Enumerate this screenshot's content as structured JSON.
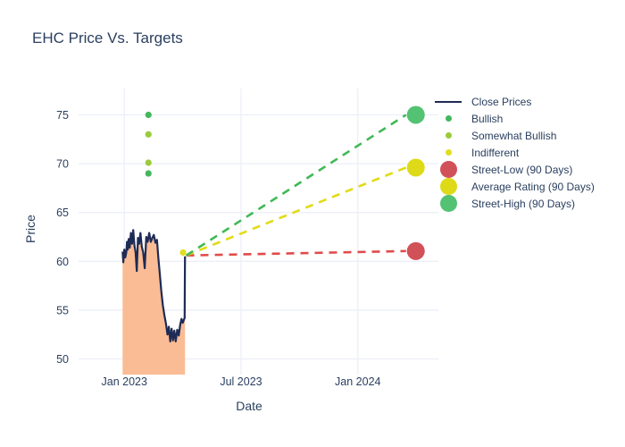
{
  "page_title": "EHC Price Vs. Targets",
  "chart_data": {
    "type": "line+scatter",
    "title": "EHC Price Vs. Targets",
    "xlabel": "Date",
    "ylabel": "Price",
    "x_unit": "months_since_jan_2023",
    "xlim": [
      -2.35,
      16.14
    ],
    "ylim": [
      48.4,
      77.7
    ],
    "grid": true,
    "background": "#ffffff",
    "grid_color": "#eceff9",
    "text_color": "#2a3f5f",
    "x_ticks": [
      {
        "m": 0,
        "label": "Jan 2023"
      },
      {
        "m": 6,
        "label": "Jul 2023"
      },
      {
        "m": 12,
        "label": "Jan 2024"
      }
    ],
    "y_ticks": [
      50,
      55,
      60,
      65,
      70,
      75
    ],
    "close_prices": {
      "name": "Close Prices",
      "line_color": "#1e2b55",
      "fill_color": "#fabc94",
      "points": [
        [
          -0.09,
          61.0
        ],
        [
          -0.05,
          59.9
        ],
        [
          0.0,
          61.2
        ],
        [
          0.05,
          60.4
        ],
        [
          0.1,
          60.9
        ],
        [
          0.14,
          62.0
        ],
        [
          0.18,
          61.2
        ],
        [
          0.23,
          62.3
        ],
        [
          0.28,
          61.4
        ],
        [
          0.34,
          62.9
        ],
        [
          0.4,
          61.8
        ],
        [
          0.46,
          63.2
        ],
        [
          0.52,
          61.6
        ],
        [
          0.58,
          60.9
        ],
        [
          0.64,
          59.0
        ],
        [
          0.7,
          62.4
        ],
        [
          0.76,
          61.8
        ],
        [
          0.83,
          62.9
        ],
        [
          0.9,
          61.5
        ],
        [
          0.97,
          60.9
        ],
        [
          1.05,
          59.3
        ],
        [
          1.13,
          62.5
        ],
        [
          1.2,
          62.0
        ],
        [
          1.28,
          62.9
        ],
        [
          1.36,
          62.0
        ],
        [
          1.44,
          62.4
        ],
        [
          1.52,
          62.7
        ],
        [
          1.6,
          61.9
        ],
        [
          1.68,
          62.2
        ],
        [
          1.75,
          60.3
        ],
        [
          1.83,
          58.6
        ],
        [
          1.9,
          57.0
        ],
        [
          1.98,
          55.5
        ],
        [
          2.06,
          54.5
        ],
        [
          2.14,
          53.6
        ],
        [
          2.22,
          52.5
        ],
        [
          2.29,
          53.3
        ],
        [
          2.36,
          51.8
        ],
        [
          2.43,
          53.1
        ],
        [
          2.5,
          51.9
        ],
        [
          2.57,
          52.9
        ],
        [
          2.64,
          51.8
        ],
        [
          2.72,
          53.0
        ],
        [
          2.8,
          52.4
        ],
        [
          2.87,
          53.5
        ],
        [
          2.94,
          54.1
        ],
        [
          3.0,
          53.7
        ],
        [
          3.06,
          54.0
        ],
        [
          3.1,
          54.2
        ],
        [
          3.12,
          60.5
        ]
      ]
    },
    "ratings": [
      {
        "name": "Bullish",
        "color": "#43b75c",
        "points": [
          [
            1.24,
            75.0
          ],
          [
            1.24,
            69.0
          ]
        ]
      },
      {
        "name": "Somewhat Bullish",
        "color": "#9acb3a",
        "points": [
          [
            1.24,
            73.0
          ],
          [
            1.24,
            70.1
          ]
        ]
      },
      {
        "name": "Indifferent",
        "color": "#e2dd1f",
        "points": [
          [
            3.02,
            60.9
          ]
        ]
      }
    ],
    "targets": [
      {
        "name": "Street-Low (90 Days)",
        "dash_color": "#e04b4b",
        "marker_color": "#d15158",
        "start": [
          3.18,
          60.6
        ],
        "end": [
          14.98,
          61.05
        ]
      },
      {
        "name": "Average Rating (90 Days)",
        "dash_color": "#e2db15",
        "marker_color": "#deda17",
        "start": [
          3.18,
          60.6
        ],
        "end": [
          14.98,
          69.6
        ]
      },
      {
        "name": "Street-High (90 Days)",
        "dash_color": "#3fb956",
        "marker_color": "#53c273",
        "start": [
          14.98,
          75.0
        ],
        "end": [
          14.98,
          75.0
        ],
        "start_override": [
          3.18,
          60.6
        ]
      }
    ],
    "legend": [
      {
        "label": "Close Prices",
        "marker": "line",
        "color": "#1e2b55",
        "size": 0
      },
      {
        "label": "Bullish",
        "marker": "dot",
        "color": "#43b75c",
        "size": 7
      },
      {
        "label": "Somewhat Bullish",
        "marker": "dot",
        "color": "#9acb3a",
        "size": 7
      },
      {
        "label": "Indifferent",
        "marker": "dot",
        "color": "#e2dd1f",
        "size": 7
      },
      {
        "label": "Street-Low (90 Days)",
        "marker": "dot",
        "color": "#d15158",
        "size": 19
      },
      {
        "label": "Average Rating (90 Days)",
        "marker": "dot",
        "color": "#deda17",
        "size": 19
      },
      {
        "label": "Street-High (90 Days)",
        "marker": "dot",
        "color": "#53c273",
        "size": 19
      }
    ]
  }
}
